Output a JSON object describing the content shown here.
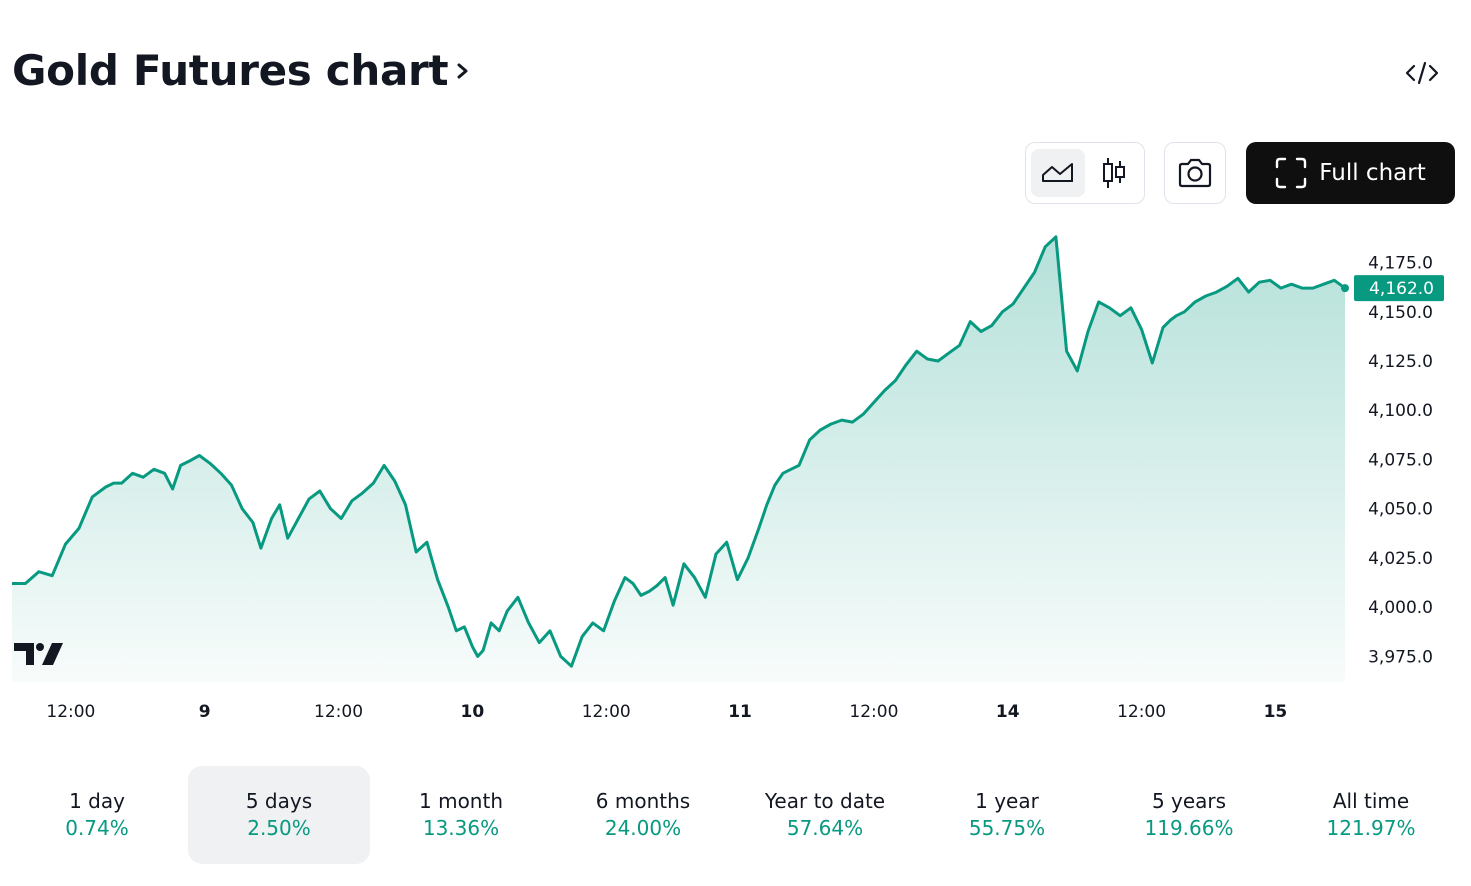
{
  "header": {
    "title": "Gold Futures chart"
  },
  "toolbar": {
    "chart_types": [
      {
        "name": "area",
        "icon": "area-chart-icon",
        "active": true
      },
      {
        "name": "candles",
        "icon": "candlestick-icon",
        "active": false
      }
    ],
    "snapshot_icon": "camera-icon",
    "full_chart_label": "Full chart",
    "embed_icon": "code-icon"
  },
  "colors": {
    "line": "#089981",
    "fill_top": "#089981",
    "price_tag_bg": "#089981",
    "text": "#131722",
    "active_bg": "#f0f1f3",
    "button_dark": "#0f0f0f"
  },
  "chart_data": {
    "type": "area",
    "title": "",
    "xlabel": "",
    "ylabel": "",
    "ylim": [
      3962,
      4190
    ],
    "y_ticks": [
      "4,175.0",
      "4,150.0",
      "4,125.0",
      "4,100.0",
      "4,075.0",
      "4,050.0",
      "4,025.0",
      "4,000.0",
      "3,975.0"
    ],
    "y_tick_values": [
      4175,
      4150,
      4125,
      4100,
      4075,
      4050,
      4025,
      4000,
      3975
    ],
    "x_ticks": [
      {
        "label": "12:00",
        "t": 0.5,
        "bold": false
      },
      {
        "label": "9",
        "t": 1.0,
        "bold": true
      },
      {
        "label": "12:00",
        "t": 1.5,
        "bold": false
      },
      {
        "label": "10",
        "t": 2.0,
        "bold": true
      },
      {
        "label": "12:00",
        "t": 2.5,
        "bold": false
      },
      {
        "label": "11",
        "t": 3.0,
        "bold": true
      },
      {
        "label": "12:00",
        "t": 3.5,
        "bold": false
      },
      {
        "label": "14",
        "t": 4.0,
        "bold": true
      },
      {
        "label": "12:00",
        "t": 4.5,
        "bold": false
      },
      {
        "label": "15",
        "t": 5.0,
        "bold": true
      }
    ],
    "x_range": [
      0.28,
      5.26
    ],
    "last_price": 4162.0,
    "last_price_label": "4,162.0",
    "series": [
      {
        "x": [
          0.28,
          0.33,
          0.38,
          0.43,
          0.48,
          0.53,
          0.58,
          0.63,
          0.66,
          0.69,
          0.73,
          0.77,
          0.81,
          0.85,
          0.88,
          0.91,
          0.94,
          0.98,
          1.02,
          1.06,
          1.1,
          1.14,
          1.18,
          1.21,
          1.25,
          1.28,
          1.31,
          1.35,
          1.39,
          1.43,
          1.47,
          1.51,
          1.55,
          1.59,
          1.63,
          1.67,
          1.71,
          1.75,
          1.79,
          1.83,
          1.87,
          1.91,
          1.94,
          1.97,
          2.0,
          2.02,
          2.04,
          2.07,
          2.1,
          2.13,
          2.17,
          2.21,
          2.25,
          2.29,
          2.33,
          2.37,
          2.41,
          2.45,
          2.49,
          2.53,
          2.57,
          2.6,
          2.63,
          2.66,
          2.69,
          2.72,
          2.75,
          2.79,
          2.83,
          2.87,
          2.91,
          2.95,
          2.99,
          3.03,
          3.07,
          3.1,
          3.13,
          3.16,
          3.19,
          3.22,
          3.26,
          3.3,
          3.34,
          3.38,
          3.42,
          3.46,
          3.5,
          3.54,
          3.58,
          3.62,
          3.66,
          3.7,
          3.74,
          3.78,
          3.82,
          3.86,
          3.9,
          3.94,
          3.98,
          4.02,
          4.06,
          4.1,
          4.14,
          4.18,
          4.22,
          4.26,
          4.3,
          4.34,
          4.38,
          4.42,
          4.46,
          4.5,
          4.54,
          4.58,
          4.61,
          4.63,
          4.66,
          4.7,
          4.74,
          4.78,
          4.82,
          4.86,
          4.9,
          4.94,
          4.98,
          5.02,
          5.06,
          5.1,
          5.14,
          5.18,
          5.22,
          5.26
        ],
        "values": [
          4012,
          4012,
          4018,
          4016,
          4032,
          4040,
          4056,
          4061,
          4063,
          4063,
          4068,
          4066,
          4070,
          4068,
          4060,
          4072,
          4074,
          4077,
          4073,
          4068,
          4062,
          4050,
          4043,
          4030,
          4045,
          4052,
          4035,
          4045,
          4055,
          4059,
          4050,
          4045,
          4054,
          4058,
          4063,
          4072,
          4064,
          4052,
          4028,
          4033,
          4014,
          4000,
          3988,
          3990,
          3980,
          3975,
          3978,
          3992,
          3988,
          3998,
          4005,
          3992,
          3982,
          3988,
          3975,
          3970,
          3985,
          3992,
          3988,
          4003,
          4015,
          4012,
          4006,
          4008,
          4011,
          4015,
          4001,
          4022,
          4015,
          4005,
          4027,
          4033,
          4014,
          4025,
          4040,
          4052,
          4062,
          4068,
          4070,
          4072,
          4085,
          4090,
          4093,
          4095,
          4094,
          4098,
          4104,
          4110,
          4115,
          4123,
          4130,
          4126,
          4125,
          4129,
          4133,
          4145,
          4140,
          4143,
          4150,
          4154,
          4162,
          4170,
          4183,
          4188,
          4130,
          4120,
          4140,
          4155,
          4152,
          4148,
          4152,
          4141,
          4124,
          4142,
          4146,
          4148,
          4150,
          4155,
          4158,
          4160,
          4163,
          4167,
          4160,
          4165,
          4166,
          4162,
          4164,
          4162,
          4162,
          4164,
          4166,
          4162
        ]
      }
    ]
  },
  "time_ranges": [
    {
      "label": "1 day",
      "change": "0.74%",
      "active": false
    },
    {
      "label": "5 days",
      "change": "2.50%",
      "active": true
    },
    {
      "label": "1 month",
      "change": "13.36%",
      "active": false
    },
    {
      "label": "6 months",
      "change": "24.00%",
      "active": false
    },
    {
      "label": "Year to date",
      "change": "57.64%",
      "active": false
    },
    {
      "label": "1 year",
      "change": "55.75%",
      "active": false
    },
    {
      "label": "5 years",
      "change": "119.66%",
      "active": false
    },
    {
      "label": "All time",
      "change": "121.97%",
      "active": false
    }
  ]
}
